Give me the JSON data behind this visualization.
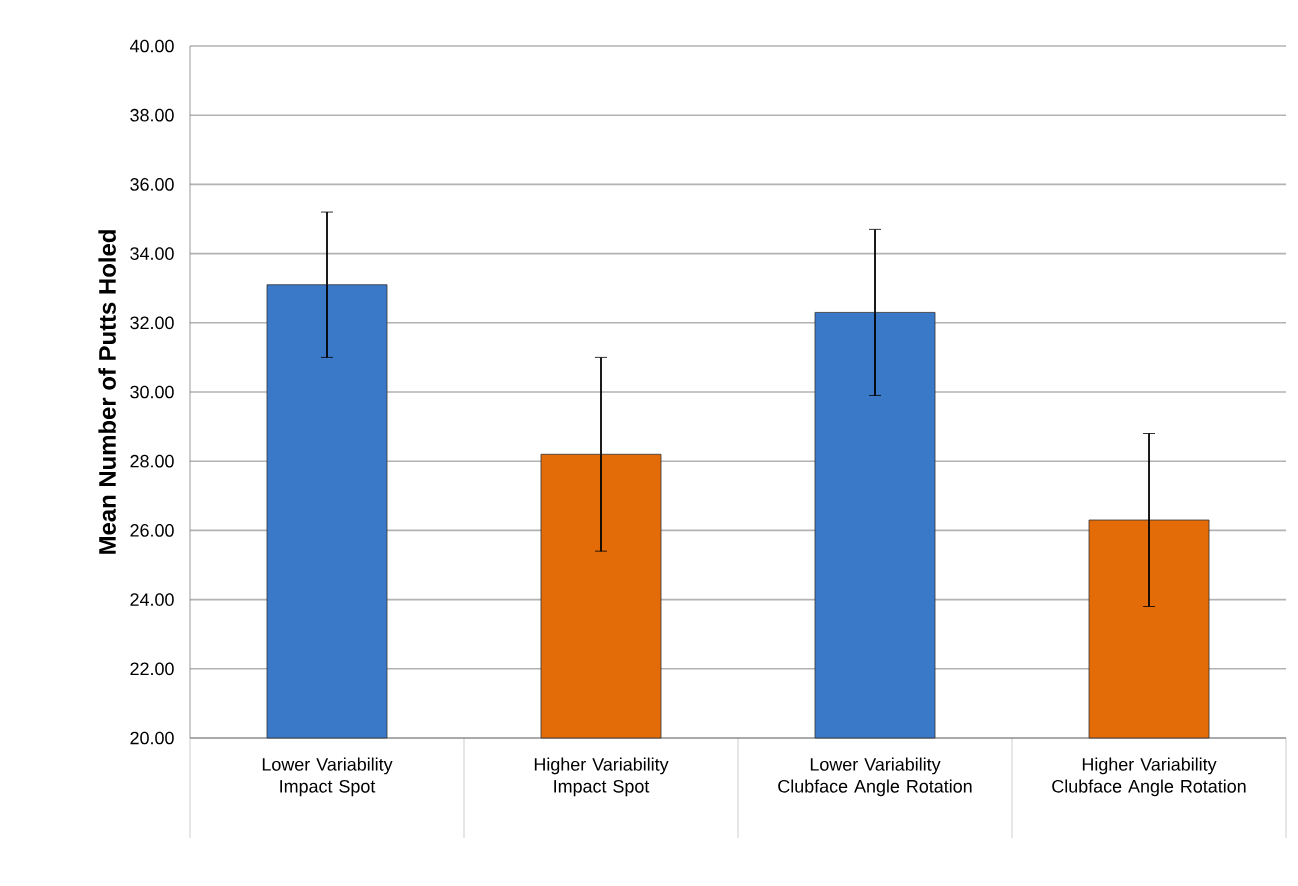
{
  "chart_data": {
    "type": "bar",
    "ylabel": "Mean Number of Putts Holed",
    "categories": [
      "Lower Variability Impact Spot",
      "Higher Variability Impact Spot",
      "Lower Variability Clubface Angle Rotation",
      "Higher Variability Clubface Angle Rotation"
    ],
    "values": [
      33.1,
      28.2,
      32.3,
      26.3
    ],
    "errors": [
      2.1,
      2.8,
      2.4,
      2.5
    ],
    "colors": [
      "#3a78c8",
      "#e36c09",
      "#3a78c8",
      "#e36c09"
    ],
    "ylim": [
      20,
      40
    ],
    "yticks": [
      {
        "value": 20,
        "label": "20.00"
      },
      {
        "value": 22,
        "label": "22.00"
      },
      {
        "value": 24,
        "label": "24.00"
      },
      {
        "value": 26,
        "label": "26.00"
      },
      {
        "value": 28,
        "label": "28.00"
      },
      {
        "value": 30,
        "label": "30.00"
      },
      {
        "value": 32,
        "label": "32.00"
      },
      {
        "value": 34,
        "label": "34.00"
      },
      {
        "value": 36,
        "label": "36.00"
      },
      {
        "value": 38,
        "label": "38.00"
      },
      {
        "value": 40,
        "label": "40.00"
      }
    ],
    "grid": "y"
  }
}
